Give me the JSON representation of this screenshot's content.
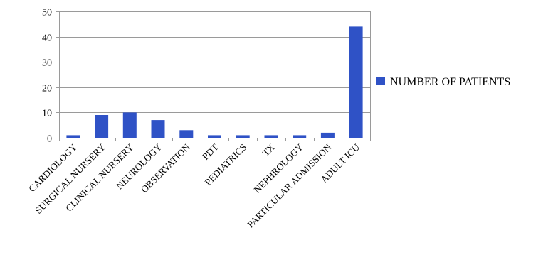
{
  "chart_data": {
    "type": "bar",
    "categories": [
      "CARDIOLOGY",
      "SURGICAL NURSERY",
      "CLINICAL NURSERY",
      "NEUROLOGY",
      "OBSERVATION",
      "PDT",
      "PEDIATRICS",
      "TX",
      "NEPHROLOGY",
      "PARTICULAR ADMISSION",
      "ADULT ICU"
    ],
    "series": [
      {
        "name": "NUMBER OF PATIENTS",
        "values": [
          1,
          9,
          10,
          7,
          3,
          1,
          1,
          1,
          1,
          2,
          44
        ]
      }
    ],
    "ylim": [
      0,
      50
    ],
    "yticks": [
      0,
      10,
      20,
      30,
      40,
      50
    ],
    "grid": true,
    "legend_position": "right",
    "bar_color": "#2f52c6"
  }
}
